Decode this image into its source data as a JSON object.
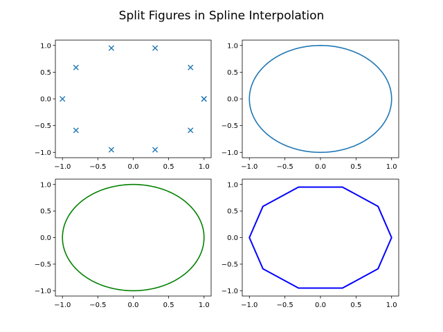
{
  "chart_data": {
    "title": "Split Figures in Spline Interpolation",
    "subplots": [
      {
        "type": "scatter",
        "marker": "x",
        "color": "#1f77b4",
        "points": [
          [
            1.0,
            0.0
          ],
          [
            0.809,
            0.588
          ],
          [
            0.309,
            0.951
          ],
          [
            -0.309,
            0.951
          ],
          [
            -0.809,
            0.588
          ],
          [
            -1.0,
            0.0
          ],
          [
            -0.809,
            -0.588
          ],
          [
            -0.309,
            -0.951
          ],
          [
            0.309,
            -0.951
          ],
          [
            0.809,
            -0.588
          ],
          [
            1.0,
            0.0
          ]
        ],
        "xlim": [
          -1.1,
          1.1
        ],
        "ylim": [
          -1.1,
          1.1
        ],
        "xticks": [
          -1.0,
          -0.5,
          0.0,
          0.5,
          1.0
        ],
        "yticks": [
          -1.0,
          -0.5,
          0.0,
          0.5,
          1.0
        ],
        "xticklabels": [
          "−1.0",
          "−0.5",
          "0.0",
          "0.5",
          "1.0"
        ],
        "yticklabels": [
          "−1.0",
          "−0.5",
          "0.0",
          "0.5",
          "1.0"
        ]
      },
      {
        "type": "line",
        "color": "#1f77b4",
        "curve": "spline circle through 10 points",
        "radius": 1.0,
        "xlim": [
          -1.1,
          1.1
        ],
        "ylim": [
          -1.1,
          1.1
        ],
        "xticks": [
          -1.0,
          -0.5,
          0.0,
          0.5,
          1.0
        ],
        "yticks": [
          -1.0,
          -0.5,
          0.0,
          0.5,
          1.0
        ],
        "xticklabels": [
          "−1.0",
          "−0.5",
          "0.0",
          "0.5",
          "1.0"
        ],
        "yticklabels": [
          "−1.0",
          "−0.5",
          "0.0",
          "0.5",
          "1.0"
        ]
      },
      {
        "type": "line",
        "color": "#008000",
        "curve": "circle",
        "radius": 1.0,
        "xlim": [
          -1.1,
          1.1
        ],
        "ylim": [
          -1.1,
          1.1
        ],
        "xticks": [
          -1.0,
          -0.5,
          0.0,
          0.5,
          1.0
        ],
        "yticks": [
          -1.0,
          -0.5,
          0.0,
          0.5,
          1.0
        ],
        "xticklabels": [
          "−1.0",
          "−0.5",
          "0.0",
          "0.5",
          "1.0"
        ],
        "yticklabels": [
          "−1.0",
          "−0.5",
          "0.0",
          "0.5",
          "1.0"
        ]
      },
      {
        "type": "line",
        "color": "#0000ff",
        "curve": "decagon",
        "points": [
          [
            1.0,
            0.0
          ],
          [
            0.809,
            0.588
          ],
          [
            0.309,
            0.951
          ],
          [
            -0.309,
            0.951
          ],
          [
            -0.809,
            0.588
          ],
          [
            -1.0,
            0.0
          ],
          [
            -0.809,
            -0.588
          ],
          [
            -0.309,
            -0.951
          ],
          [
            0.309,
            -0.951
          ],
          [
            0.809,
            -0.588
          ],
          [
            1.0,
            0.0
          ]
        ],
        "xlim": [
          -1.1,
          1.1
        ],
        "ylim": [
          -1.1,
          1.1
        ],
        "xticks": [
          -1.0,
          -0.5,
          0.0,
          0.5,
          1.0
        ],
        "yticks": [
          -1.0,
          -0.5,
          0.0,
          0.5,
          1.0
        ],
        "xticklabels": [
          "−1.0",
          "−0.5",
          "0.0",
          "0.5",
          "1.0"
        ],
        "yticklabels": [
          "−1.0",
          "−0.5",
          "0.0",
          "0.5",
          "1.0"
        ]
      }
    ]
  }
}
